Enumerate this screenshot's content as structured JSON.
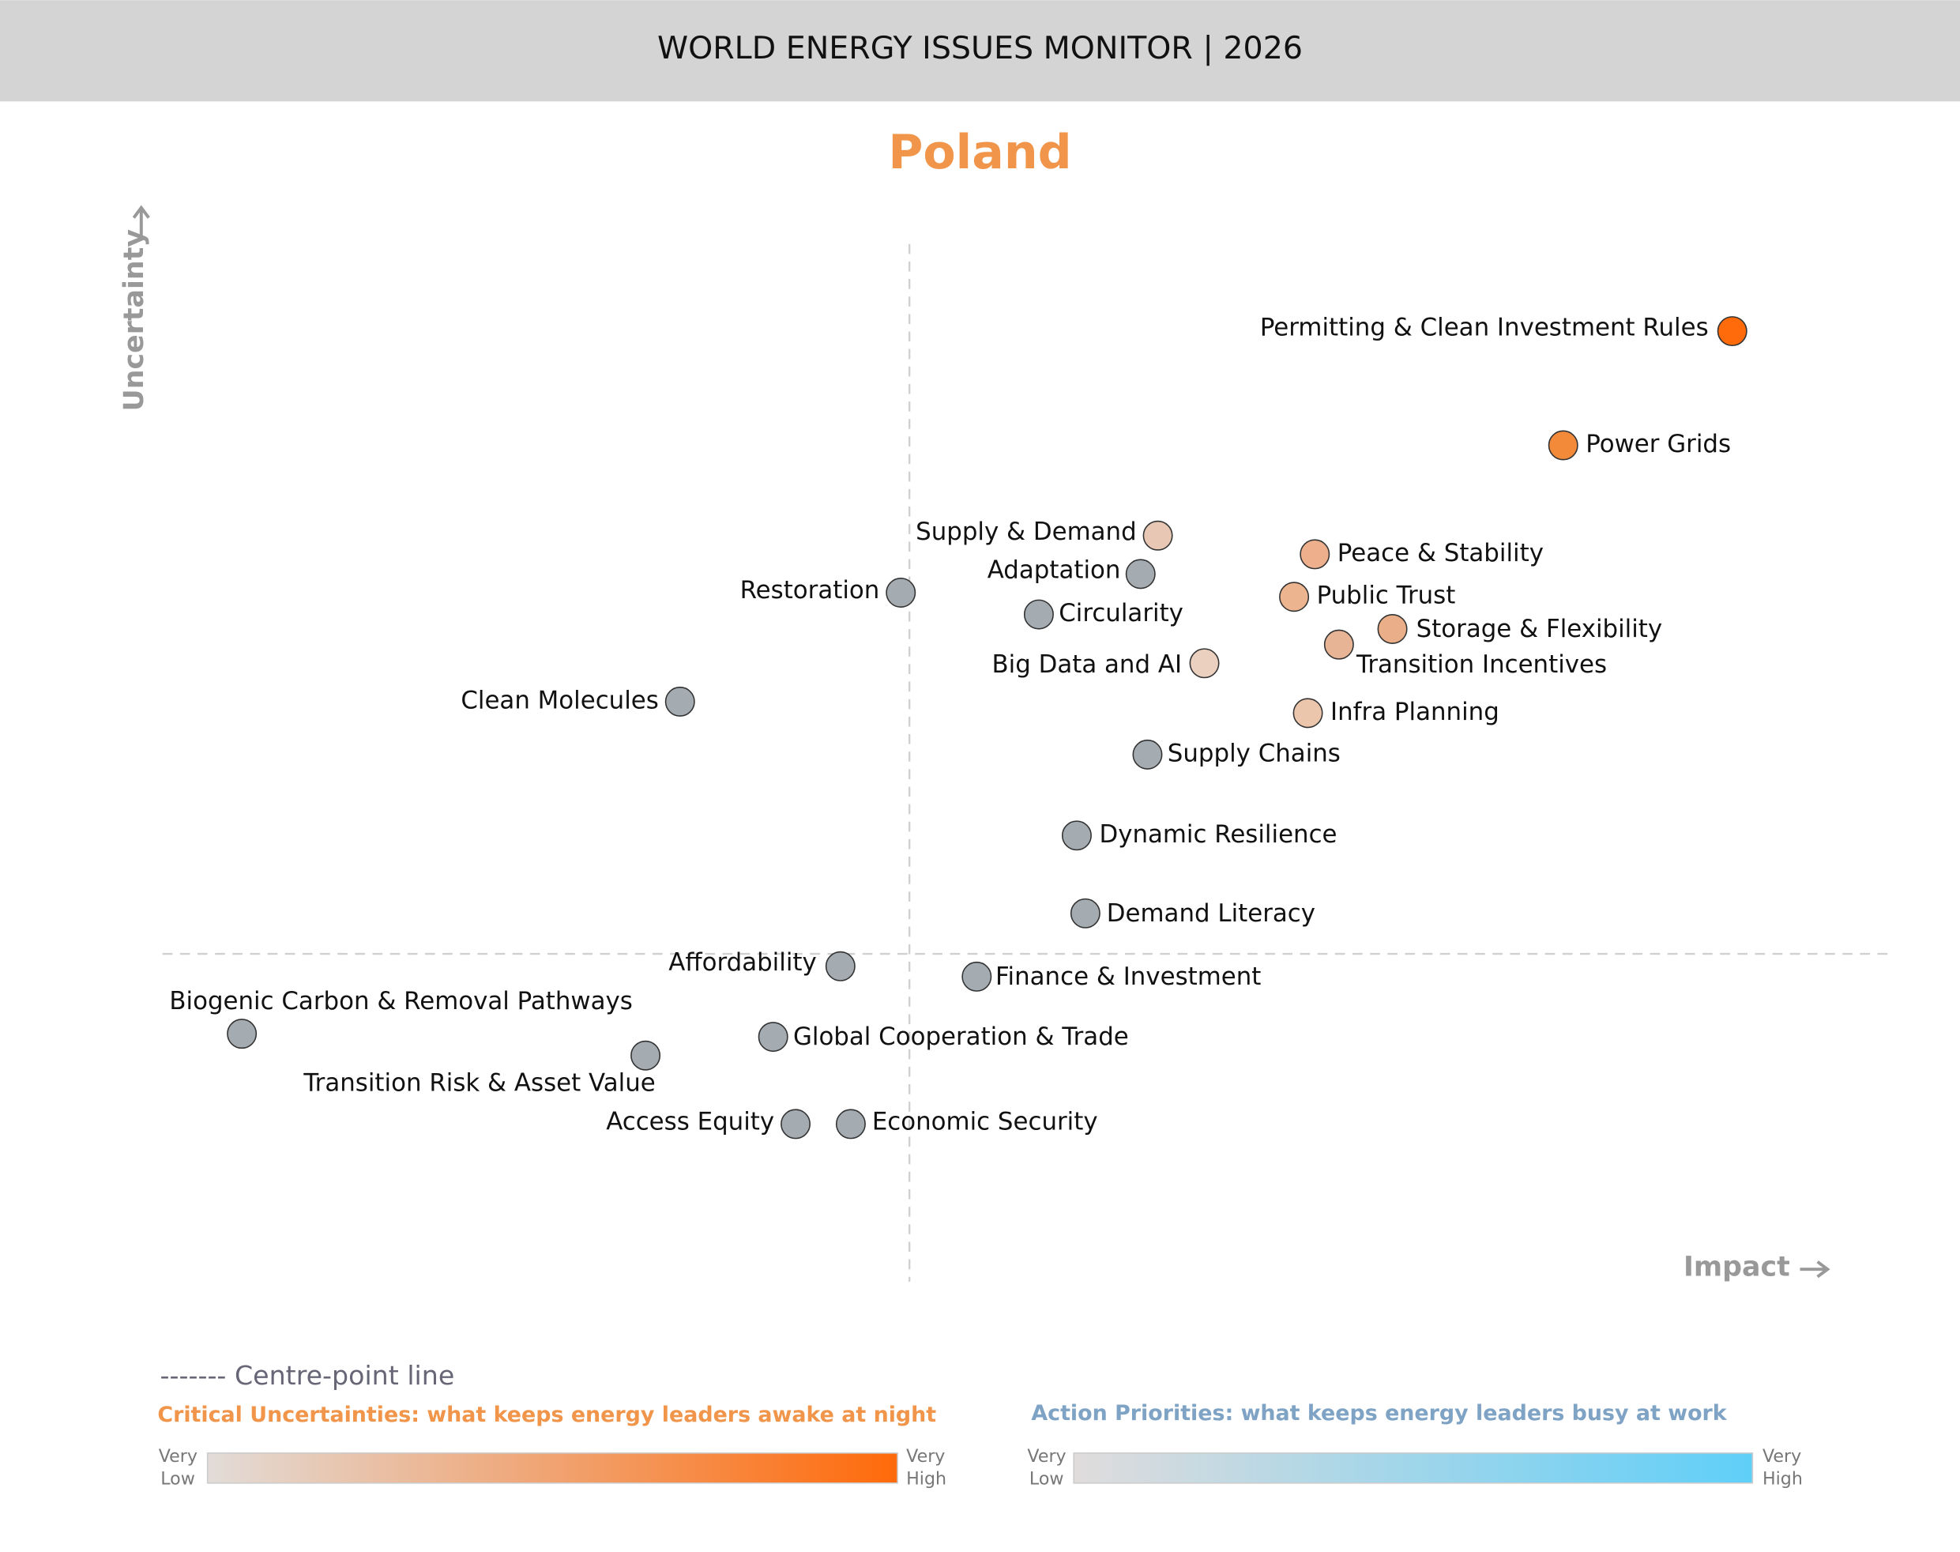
{
  "header": {
    "title": "WORLD ENERGY ISSUES MONITOR | 2026"
  },
  "chart_data": {
    "type": "scatter",
    "title": "Poland",
    "x_label": "Impact",
    "y_label": "Uncertainty",
    "xlim": [
      0,
      100
    ],
    "ylim": [
      0,
      100
    ],
    "centre": {
      "x": 43.3,
      "y": 31.6
    },
    "points": [
      {
        "label": "Permitting & Clean Investment Rules",
        "x": 91.0,
        "y": 91.6,
        "color": "#ff6a0a"
      },
      {
        "label": "Power Grids",
        "x": 81.2,
        "y": 80.6,
        "color": "#f28a3a"
      },
      {
        "label": "Supply & Demand",
        "x": 57.7,
        "y": 71.9,
        "color": "#e8c8b4"
      },
      {
        "label": "Peace & Stability",
        "x": 66.8,
        "y": 70.1,
        "color": "#eeb08c"
      },
      {
        "label": "Adaptation",
        "x": 56.7,
        "y": 68.2,
        "color": "#a4acb2"
      },
      {
        "label": "Restoration",
        "x": 42.8,
        "y": 66.4,
        "color": "#a4acb2"
      },
      {
        "label": "Public Trust",
        "x": 65.6,
        "y": 66.0,
        "color": "#ecb48f"
      },
      {
        "label": "Circularity",
        "x": 50.8,
        "y": 64.3,
        "color": "#a4acb2"
      },
      {
        "label": "Storage & Flexibility",
        "x": 71.3,
        "y": 62.9,
        "color": "#eaae88"
      },
      {
        "label": "Transition Incentives",
        "x": 68.2,
        "y": 61.4,
        "color": "#e8b496"
      },
      {
        "label": "Big Data and AI",
        "x": 60.4,
        "y": 59.6,
        "color": "#ebd0bf"
      },
      {
        "label": "Clean Molecules",
        "x": 30.0,
        "y": 55.9,
        "color": "#a4acb2"
      },
      {
        "label": "Infra Planning",
        "x": 66.4,
        "y": 54.8,
        "color": "#ecc6ac"
      },
      {
        "label": "Supply Chains",
        "x": 57.1,
        "y": 50.8,
        "color": "#a4acb2"
      },
      {
        "label": "Dynamic Resilience",
        "x": 53.0,
        "y": 43.0,
        "color": "#a4acb2"
      },
      {
        "label": "Demand Literacy",
        "x": 53.5,
        "y": 35.5,
        "color": "#a4acb2"
      },
      {
        "label": "Affordability",
        "x": 39.3,
        "y": 30.4,
        "color": "#a4acb2"
      },
      {
        "label": "Finance & Investment",
        "x": 47.2,
        "y": 29.4,
        "color": "#a4acb2"
      },
      {
        "label": "Biogenic Carbon & Removal Pathways",
        "x": 4.6,
        "y": 23.9,
        "color": "#a4acb2"
      },
      {
        "label": "Global Cooperation & Trade",
        "x": 35.4,
        "y": 23.6,
        "color": "#a4acb2"
      },
      {
        "label": "Transition Risk & Asset Value",
        "x": 28.0,
        "y": 21.8,
        "color": "#a4acb2"
      },
      {
        "label": "Access Equity",
        "x": 36.7,
        "y": 15.2,
        "color": "#a4acb2"
      },
      {
        "label": "Economic Security",
        "x": 39.9,
        "y": 15.2,
        "color": "#a4acb2"
      }
    ]
  },
  "legend": {
    "centre_line": "------- Centre-point line",
    "uncertainties": {
      "title": "Critical Uncertainties: what keeps energy leaders awake at night",
      "low": [
        "Very",
        "Low"
      ],
      "high": [
        "Very",
        "High"
      ],
      "colors": [
        "#e2dcd8",
        "#ff6a0a"
      ]
    },
    "priorities": {
      "title": "Action Priorities: what keeps energy leaders busy at work",
      "low": [
        "Very",
        "Low"
      ],
      "high": [
        "Very",
        "High"
      ],
      "colors": [
        "#e0dcdc",
        "#5fcff8"
      ]
    }
  }
}
